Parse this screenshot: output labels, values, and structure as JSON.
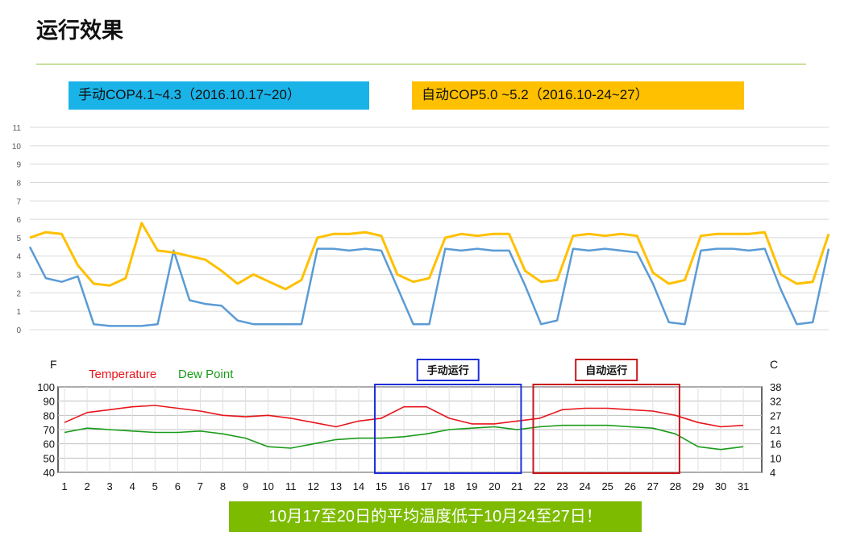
{
  "slide": {
    "title": "运行效果",
    "label_manual": "手动COP4.1~4.3（2016.10.17~20）",
    "label_auto": "自动COP5.0 ~5.2（2016.10-24~27）",
    "footer": "10月17至20日的平均温度低于10月24至27日！",
    "colors": {
      "rule": "#8fbf3f",
      "manual_bg": "#1ab3e8",
      "auto_bg": "#ffc000",
      "footer_bg": "#7cbb00"
    }
  },
  "chart_data": [
    {
      "type": "line",
      "ylim": [
        0,
        11
      ],
      "y_ticks": [
        "0",
        "1",
        "2",
        "3",
        "4",
        "5",
        "6",
        "7",
        "8",
        "9",
        "10",
        "11"
      ],
      "grid": true,
      "x": [
        0,
        0.5,
        1,
        1.5,
        2,
        2.5,
        3,
        3.5,
        4,
        4.5,
        5,
        5.5,
        6,
        6.5,
        7,
        7.5,
        8,
        8.5,
        9,
        9.5,
        10,
        10.5,
        11,
        11.5,
        12,
        12.5,
        13,
        13.5,
        14,
        14.5,
        15,
        15.5,
        16,
        16.5,
        17,
        17.5,
        18,
        18.5,
        19,
        19.5,
        20,
        20.5,
        21,
        21.5,
        22,
        22.5,
        23,
        23.5,
        24,
        24.5,
        25
      ],
      "series": [
        {
          "color": "#5b9bd5",
          "values": [
            4.5,
            2.8,
            2.6,
            2.9,
            0.3,
            0.2,
            0.2,
            0.2,
            0.3,
            4.3,
            1.6,
            1.4,
            1.3,
            0.5,
            0.3,
            0.3,
            0.3,
            0.3,
            4.4,
            4.4,
            4.3,
            4.4,
            4.3,
            2.3,
            0.3,
            0.3,
            4.4,
            4.3,
            4.4,
            4.3,
            4.3,
            2.4,
            0.3,
            0.5,
            4.4,
            4.3,
            4.4,
            4.3,
            4.2,
            2.5,
            0.4,
            0.3,
            4.3,
            4.4,
            4.4,
            4.3,
            4.4,
            2.2,
            0.3,
            0.4,
            4.4
          ]
        },
        {
          "color": "#ffc000",
          "values": [
            5.0,
            5.3,
            5.2,
            3.5,
            2.5,
            2.4,
            2.8,
            5.8,
            4.3,
            4.2,
            4.0,
            3.8,
            3.2,
            2.5,
            3.0,
            2.6,
            2.2,
            2.7,
            5.0,
            5.2,
            5.2,
            5.3,
            5.1,
            3.0,
            2.6,
            2.8,
            5.0,
            5.2,
            5.1,
            5.2,
            5.2,
            3.2,
            2.6,
            2.7,
            5.1,
            5.2,
            5.1,
            5.2,
            5.1,
            3.1,
            2.5,
            2.7,
            5.1,
            5.2,
            5.2,
            5.2,
            5.3,
            3.0,
            2.5,
            2.6,
            5.2
          ]
        }
      ]
    },
    {
      "type": "line",
      "left_axis_label": "F",
      "right_axis_label": "C",
      "legend": [
        "Temperature",
        "Dew Point"
      ],
      "ylim": [
        40,
        100
      ],
      "y_ticks_left": [
        "100",
        "90",
        "80",
        "70",
        "60",
        "50",
        "40"
      ],
      "y_ticks_right": [
        "38",
        "32",
        "27",
        "21",
        "16",
        "10",
        "4"
      ],
      "categories": [
        "1",
        "2",
        "3",
        "4",
        "5",
        "6",
        "7",
        "8",
        "9",
        "10",
        "11",
        "12",
        "13",
        "14",
        "15",
        "16",
        "17",
        "18",
        "19",
        "20",
        "21",
        "22",
        "23",
        "24",
        "25",
        "26",
        "27",
        "28",
        "29",
        "30",
        "31"
      ],
      "grid": true,
      "series": [
        {
          "name": "Temperature",
          "color": "#e8141b",
          "values": [
            75,
            82,
            84,
            86,
            87,
            85,
            83,
            80,
            79,
            80,
            78,
            75,
            72,
            76,
            78,
            86,
            86,
            78,
            74,
            74,
            76,
            78,
            84,
            85,
            85,
            84,
            83,
            80,
            75,
            72,
            73
          ]
        },
        {
          "name": "Dew Point",
          "color": "#1a9b1a",
          "values": [
            68,
            71,
            70,
            69,
            68,
            68,
            69,
            67,
            64,
            58,
            57,
            60,
            63,
            64,
            64,
            65,
            67,
            70,
            71,
            72,
            70,
            72,
            73,
            73,
            73,
            72,
            71,
            67,
            58,
            56,
            58
          ]
        }
      ],
      "annotations": [
        {
          "label": "手动运行",
          "from": "15",
          "to": "21",
          "color": "#1f2fd8"
        },
        {
          "label": "自动运行",
          "from": "22",
          "to": "28",
          "color": "#c8151b"
        }
      ]
    }
  ]
}
